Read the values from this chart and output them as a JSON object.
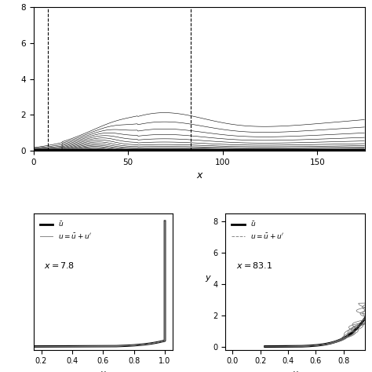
{
  "top_panel": {
    "x_range": [
      0,
      175
    ],
    "y_range": [
      0,
      8
    ],
    "x_label": "x",
    "y_ticks": [
      0,
      2,
      4,
      6,
      8
    ],
    "x_ticks": [
      0,
      50,
      100,
      150
    ],
    "vline1_x": 7.8,
    "vline2_x": 83.1,
    "n_contours": 30
  },
  "bottom_left": {
    "x_range": [
      0.15,
      1.05
    ],
    "x_label": "u",
    "x_ticks": [
      0.2,
      0.4,
      0.6,
      0.8,
      1.0
    ],
    "annotation": "x=7.8"
  },
  "bottom_right": {
    "x_range": [
      -0.05,
      0.95
    ],
    "x_label": "u",
    "y_label": "y",
    "y_ticks": [
      0,
      2,
      4,
      6,
      8
    ],
    "x_ticks": [
      0.0,
      0.2,
      0.4,
      0.6,
      0.8
    ],
    "annotation": "x=83.1"
  },
  "figure_bg": "white"
}
